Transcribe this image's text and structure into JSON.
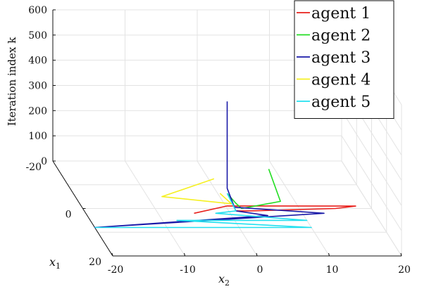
{
  "chart_data": {
    "type": "line3d",
    "title": "",
    "xlabel": "x_2",
    "ylabel": "x_1",
    "zlabel": "Iteration index k",
    "x2_ticks": [
      -20,
      -10,
      0,
      10,
      20
    ],
    "x1_ticks": [
      -20,
      0,
      20
    ],
    "z_ticks": [
      0,
      100,
      200,
      300,
      400,
      500,
      600
    ],
    "xlim": [
      -20,
      20
    ],
    "ylim": [
      -20,
      20
    ],
    "zlim": [
      0,
      600
    ],
    "grid": true,
    "legend_position": "top-right",
    "series": [
      {
        "name": "agent 1",
        "color": "#e8201c",
        "points": [
          [
            -5,
            2,
            0
          ],
          [
            0,
            0,
            10
          ],
          [
            18,
            -1,
            0
          ],
          [
            15,
            0,
            0
          ],
          [
            3,
            1,
            0
          ],
          [
            1,
            1,
            0
          ],
          [
            0,
            1,
            60
          ]
        ]
      },
      {
        "name": "agent 2",
        "color": "#22dd22",
        "points": [
          [
            7,
            -6,
            100
          ],
          [
            8,
            -3,
            0
          ],
          [
            2,
            0,
            0
          ],
          [
            1,
            1,
            30
          ],
          [
            0,
            0,
            60
          ]
        ]
      },
      {
        "name": "agent 3",
        "color": "#1a1aa8",
        "points": [
          [
            0,
            0,
            425
          ],
          [
            0,
            0,
            80
          ],
          [
            1,
            0,
            5
          ],
          [
            13,
            2,
            0
          ],
          [
            -20,
            8,
            0
          ],
          [
            5,
            3,
            0
          ],
          [
            1,
            1,
            0
          ]
        ]
      },
      {
        "name": "agent 4",
        "color": "#f5f022",
        "points": [
          [
            -1,
            -4,
            80
          ],
          [
            -8,
            -5,
            0
          ],
          [
            1,
            -2,
            0
          ],
          [
            -1,
            0,
            60
          ]
        ]
      },
      {
        "name": "agent 5",
        "color": "#22e0ef",
        "points": [
          [
            -20,
            8,
            0
          ],
          [
            10,
            8,
            0
          ],
          [
            -8,
            5,
            0
          ],
          [
            10,
            5,
            0
          ],
          [
            -2,
            2,
            0
          ],
          [
            1,
            1,
            0
          ],
          [
            0,
            0,
            60
          ]
        ]
      }
    ]
  }
}
